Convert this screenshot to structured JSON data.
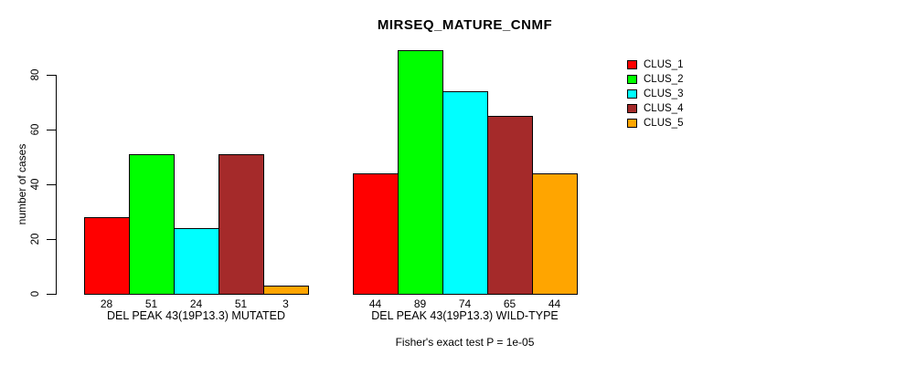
{
  "chart_data": {
    "type": "bar",
    "title": "MIRSEQ_MATURE_CNMF",
    "ylabel": "number of cases",
    "xlabel": "",
    "footer": "Fisher's exact test P = 1e-05",
    "yticks": [
      0,
      20,
      40,
      60,
      80
    ],
    "ylim": [
      0,
      90
    ],
    "grid": false,
    "legend_position": "top-right",
    "bar_border_color": "#000000",
    "series": [
      {
        "name": "CLUS_1",
        "color": "#ff0000"
      },
      {
        "name": "CLUS_2",
        "color": "#00ff00"
      },
      {
        "name": "CLUS_3",
        "color": "#00ffff"
      },
      {
        "name": "CLUS_4",
        "color": "#a52a2a"
      },
      {
        "name": "CLUS_5",
        "color": "#ffa500"
      }
    ],
    "categories": [
      "DEL PEAK 43(19P13.3) MUTATED",
      "DEL PEAK 43(19P13.3) WILD-TYPE"
    ],
    "groups": [
      {
        "label": "DEL PEAK 43(19P13.3) MUTATED",
        "values": [
          28,
          51,
          24,
          51,
          3
        ]
      },
      {
        "label": "DEL PEAK 43(19P13.3) WILD-TYPE",
        "values": [
          44,
          89,
          74,
          65,
          44
        ]
      }
    ],
    "bar_value_labels_shown": true
  }
}
